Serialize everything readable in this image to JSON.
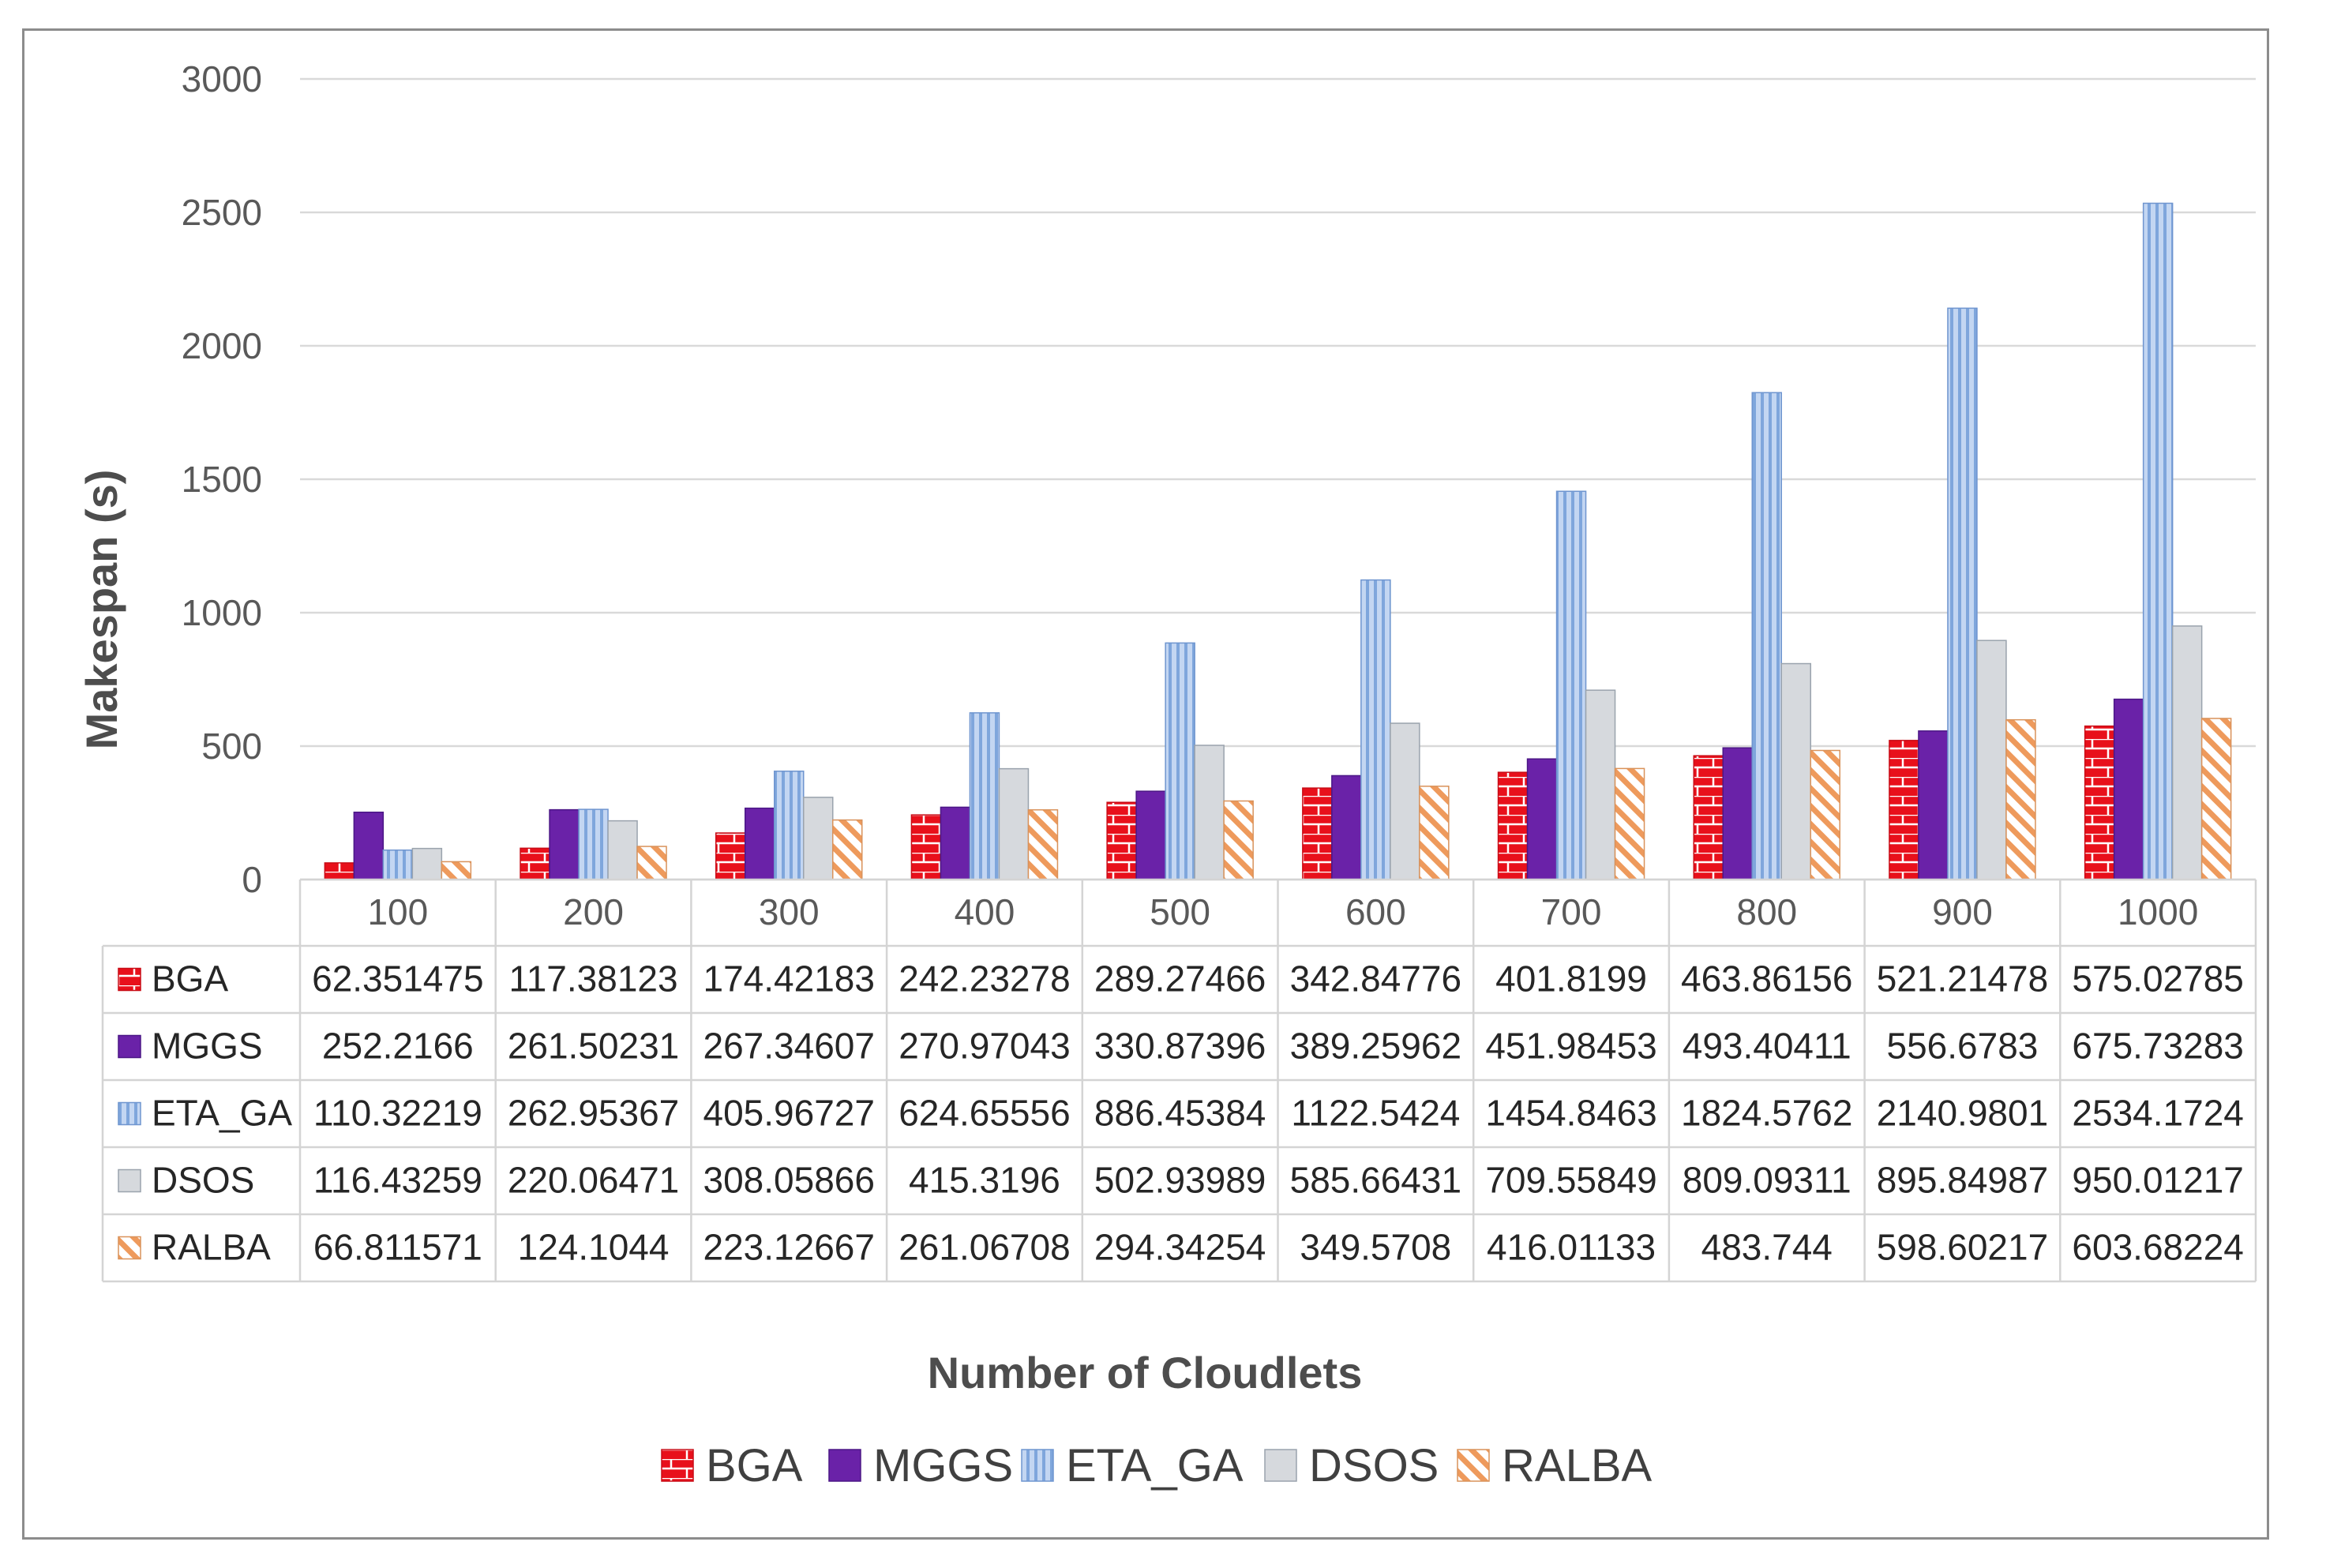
{
  "chart_data": {
    "type": "bar",
    "title": "",
    "xlabel": "Number of Cloudlets",
    "ylabel": "Makespan (s)",
    "ylim": [
      0,
      3000
    ],
    "yticks": [
      0,
      500,
      1000,
      1500,
      2000,
      2500,
      3000
    ],
    "grid": true,
    "legend_position": "bottom",
    "categories": [
      "100",
      "200",
      "300",
      "400",
      "500",
      "600",
      "700",
      "800",
      "900",
      "1000"
    ],
    "series": [
      {
        "name": "BGA",
        "color": "#e8101b",
        "pattern": "bricks",
        "values": [
          62.351475,
          117.38123,
          174.42183,
          242.23278,
          289.27466,
          342.84776,
          401.8199,
          463.86156,
          521.21478,
          575.02785
        ],
        "labels": [
          "62.351475",
          "117.38123",
          "174.42183",
          "242.23278",
          "289.27466",
          "342.84776",
          "401.8199",
          "463.86156",
          "521.21478",
          "575.02785"
        ]
      },
      {
        "name": "MGGS",
        "color": "#6a22a8",
        "pattern": "solid",
        "values": [
          252.2166,
          261.50231,
          267.34607,
          270.97043,
          330.87396,
          389.25962,
          451.98453,
          493.40411,
          556.6783,
          675.73283
        ],
        "labels": [
          "252.2166",
          "261.50231",
          "267.34607",
          "270.97043",
          "330.87396",
          "389.25962",
          "451.98453",
          "493.40411",
          "556.6783",
          "675.73283"
        ]
      },
      {
        "name": "ETA_GA",
        "color": "#8fb3e3",
        "pattern": "vertical-stripes",
        "values": [
          110.32219,
          262.95367,
          405.96727,
          624.65556,
          886.45384,
          1122.5424,
          1454.8463,
          1824.5762,
          2140.9801,
          2534.1724
        ],
        "labels": [
          "110.32219",
          "262.95367",
          "405.96727",
          "624.65556",
          "886.45384",
          "1122.5424",
          "1454.8463",
          "1824.5762",
          "2140.9801",
          "2534.1724"
        ]
      },
      {
        "name": "DSOS",
        "color": "#d6d9dd",
        "pattern": "solid",
        "values": [
          116.43259,
          220.06471,
          308.05866,
          415.3196,
          502.93989,
          585.66431,
          709.55849,
          809.09311,
          895.84987,
          950.01217
        ],
        "labels": [
          "116.43259",
          "220.06471",
          "308.05866",
          "415.3196",
          "502.93989",
          "585.66431",
          "709.55849",
          "809.09311",
          "895.84987",
          "950.01217"
        ]
      },
      {
        "name": "RALBA",
        "color": "#f0a56b",
        "pattern": "diagonal-stripes",
        "values": [
          66.811571,
          124.1044,
          223.12667,
          261.06708,
          294.34254,
          349.5708,
          416.01133,
          483.744,
          598.60217,
          603.68224
        ],
        "labels": [
          "66.811571",
          "124.1044",
          "223.12667",
          "261.06708",
          "294.34254",
          "349.5708",
          "416.01133",
          "483.744",
          "598.60217",
          "603.68224"
        ]
      }
    ]
  }
}
